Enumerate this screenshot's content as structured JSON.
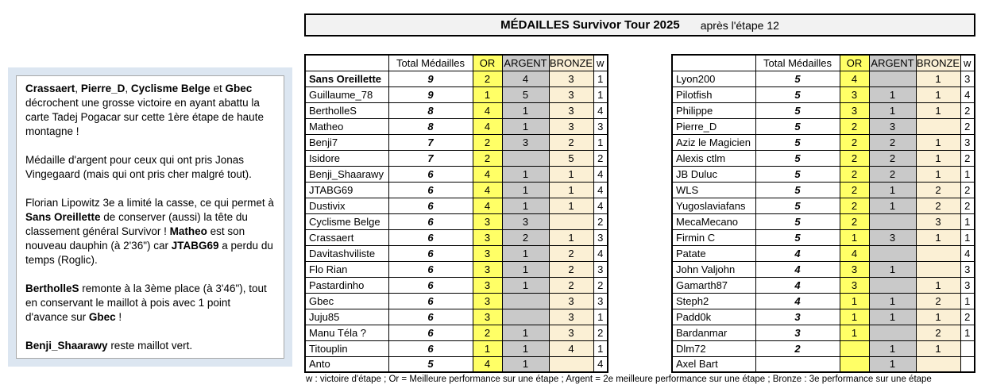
{
  "title": {
    "main": "MÉDAILLES Survivor Tour 2025",
    "sub": "après l'étape 12"
  },
  "note": {
    "paragraphs": [
      [
        {
          "b": true,
          "t": "Crassaert"
        },
        {
          "t": ", "
        },
        {
          "b": true,
          "t": "Pierre_D"
        },
        {
          "t": ", "
        },
        {
          "b": true,
          "t": "Cyclisme Belge"
        },
        {
          "t": " et "
        },
        {
          "b": true,
          "t": "Gbec"
        },
        {
          "t": " décrochent une grosse victoire en ayant abattu la carte Tadej Pogacar sur cette 1ère étape de haute montagne !"
        }
      ],
      [
        {
          "t": "Médaille d'argent pour ceux qui ont pris Jonas Vingegaard (mais qui ont pris cher malgré tout)."
        }
      ],
      [
        {
          "t": "Florian Lipowitz 3e a limité la casse, ce qui permet à "
        },
        {
          "b": true,
          "t": "Sans Oreillette"
        },
        {
          "t": " de conserver (aussi) la tête du classement général Survivor ! "
        },
        {
          "b": true,
          "t": "Matheo"
        },
        {
          "t": " est son nouveau dauphin (à 2'36\") car "
        },
        {
          "b": true,
          "t": "JTABG69"
        },
        {
          "t": " a perdu du temps (Roglic)."
        }
      ],
      [
        {
          "b": true,
          "t": "BertholleS"
        },
        {
          "t": " remonte à la 3ème place (à 3'46\"), tout en conservant le maillot à pois avec 1 point d'avance sur "
        },
        {
          "b": true,
          "t": "Gbec"
        },
        {
          "t": " !"
        }
      ],
      [
        {
          "b": true,
          "t": "Benji_Shaarawy"
        },
        {
          "t": " reste maillot vert."
        }
      ]
    ]
  },
  "table": {
    "headers": [
      "",
      "Total Médailles",
      "OR",
      "ARGENT",
      "BRONZE",
      "w"
    ],
    "left_rows": [
      {
        "name": "Sans Oreillette",
        "bold": true,
        "total": "9",
        "or": "2",
        "argent": "4",
        "bronze": "3",
        "w": "1"
      },
      {
        "name": "Guillaume_78",
        "total": "9",
        "or": "1",
        "argent": "5",
        "bronze": "3",
        "w": "1"
      },
      {
        "name": "BertholleS",
        "total": "8",
        "or": "4",
        "argent": "1",
        "bronze": "3",
        "w": "4"
      },
      {
        "name": "Matheo",
        "total": "8",
        "or": "4",
        "argent": "1",
        "bronze": "3",
        "w": "3"
      },
      {
        "name": "Benji7",
        "total": "7",
        "or": "2",
        "argent": "3",
        "bronze": "2",
        "w": "1"
      },
      {
        "name": "Isidore",
        "total": "7",
        "or": "2",
        "argent": "",
        "bronze": "5",
        "w": "2"
      },
      {
        "name": "Benji_Shaarawy",
        "total": "6",
        "or": "4",
        "argent": "1",
        "bronze": "1",
        "w": "4"
      },
      {
        "name": "JTABG69",
        "total": "6",
        "or": "4",
        "argent": "1",
        "bronze": "1",
        "w": "4"
      },
      {
        "name": "Dustivix",
        "total": "6",
        "or": "4",
        "argent": "1",
        "bronze": "1",
        "w": "4"
      },
      {
        "name": "Cyclisme Belge",
        "total": "6",
        "or": "3",
        "argent": "3",
        "bronze": "",
        "w": "2"
      },
      {
        "name": "Crassaert",
        "total": "6",
        "or": "3",
        "argent": "2",
        "bronze": "1",
        "w": "3"
      },
      {
        "name": "Davitashviliste",
        "total": "6",
        "or": "3",
        "argent": "1",
        "bronze": "2",
        "w": "4"
      },
      {
        "name": "Flo Rian",
        "total": "6",
        "or": "3",
        "argent": "1",
        "bronze": "2",
        "w": "3"
      },
      {
        "name": "Pastardinho",
        "total": "6",
        "or": "3",
        "argent": "1",
        "bronze": "2",
        "w": "2"
      },
      {
        "name": "Gbec",
        "total": "6",
        "or": "3",
        "argent": "",
        "bronze": "3",
        "w": "3"
      },
      {
        "name": "Juju85",
        "total": "6",
        "or": "3",
        "argent": "",
        "bronze": "3",
        "w": "1"
      },
      {
        "name": "Manu Téla ?",
        "total": "6",
        "or": "2",
        "argent": "1",
        "bronze": "3",
        "w": "2"
      },
      {
        "name": "Titouplin",
        "total": "6",
        "or": "1",
        "argent": "1",
        "bronze": "4",
        "w": "1"
      },
      {
        "name": "Anto",
        "total": "5",
        "or": "4",
        "argent": "1",
        "bronze": "",
        "w": "4"
      }
    ],
    "right_rows": [
      {
        "name": "Lyon200",
        "total": "5",
        "or": "4",
        "argent": "",
        "bronze": "1",
        "w": "3"
      },
      {
        "name": "Pilotfish",
        "total": "5",
        "or": "3",
        "argent": "1",
        "bronze": "1",
        "w": "4"
      },
      {
        "name": "Philippe",
        "total": "5",
        "or": "3",
        "argent": "1",
        "bronze": "1",
        "w": "2"
      },
      {
        "name": "Pierre_D",
        "total": "5",
        "or": "2",
        "argent": "3",
        "bronze": "",
        "w": "2"
      },
      {
        "name": "Aziz le Magicien",
        "total": "5",
        "or": "2",
        "argent": "2",
        "bronze": "1",
        "w": "3"
      },
      {
        "name": "Alexis ctlm",
        "total": "5",
        "or": "2",
        "argent": "2",
        "bronze": "1",
        "w": "2"
      },
      {
        "name": "JB Duluc",
        "total": "5",
        "or": "2",
        "argent": "2",
        "bronze": "1",
        "w": "1"
      },
      {
        "name": "WLS",
        "total": "5",
        "or": "2",
        "argent": "1",
        "bronze": "2",
        "w": "2"
      },
      {
        "name": "Yugoslaviafans",
        "total": "5",
        "or": "2",
        "argent": "1",
        "bronze": "2",
        "w": "2"
      },
      {
        "name": "MecaMecano",
        "total": "5",
        "or": "2",
        "argent": "",
        "bronze": "3",
        "w": "1"
      },
      {
        "name": "Firmin C",
        "total": "5",
        "or": "1",
        "argent": "3",
        "bronze": "1",
        "w": "1"
      },
      {
        "name": "Patate",
        "total": "4",
        "or": "4",
        "argent": "",
        "bronze": "",
        "w": "4"
      },
      {
        "name": "John Valjohn",
        "total": "4",
        "or": "3",
        "argent": "1",
        "bronze": "",
        "w": "3"
      },
      {
        "name": "Gamarth87",
        "total": "4",
        "or": "3",
        "argent": "",
        "bronze": "1",
        "w": "3"
      },
      {
        "name": "Steph2",
        "total": "4",
        "or": "1",
        "argent": "1",
        "bronze": "2",
        "w": "1"
      },
      {
        "name": "Padd0k",
        "total": "3",
        "or": "1",
        "argent": "1",
        "bronze": "1",
        "w": "2"
      },
      {
        "name": "Bardanmar",
        "total": "3",
        "or": "1",
        "argent": "",
        "bronze": "2",
        "w": "1"
      },
      {
        "name": "Dlm72",
        "total": "2",
        "or": "",
        "argent": "1",
        "bronze": "1",
        "w": ""
      },
      {
        "name": "Axel Bart",
        "total": "",
        "or": "",
        "argent": "1",
        "bronze": "",
        "w": ""
      }
    ]
  },
  "footer": "w : victoire d'étape ; Or = Meilleure performance sur une étape ; Argent = 2e meilleure performance sur une étape ;  Bronze : 3e performance sur une étape",
  "colors": {
    "or": "#FFFF66",
    "argent": "#C9C9C9",
    "bronze": "#FBF0D5",
    "title_bg": "#F2F2F2",
    "note_bg": "#DCE6F1",
    "note_border": "#A6A6A6"
  }
}
